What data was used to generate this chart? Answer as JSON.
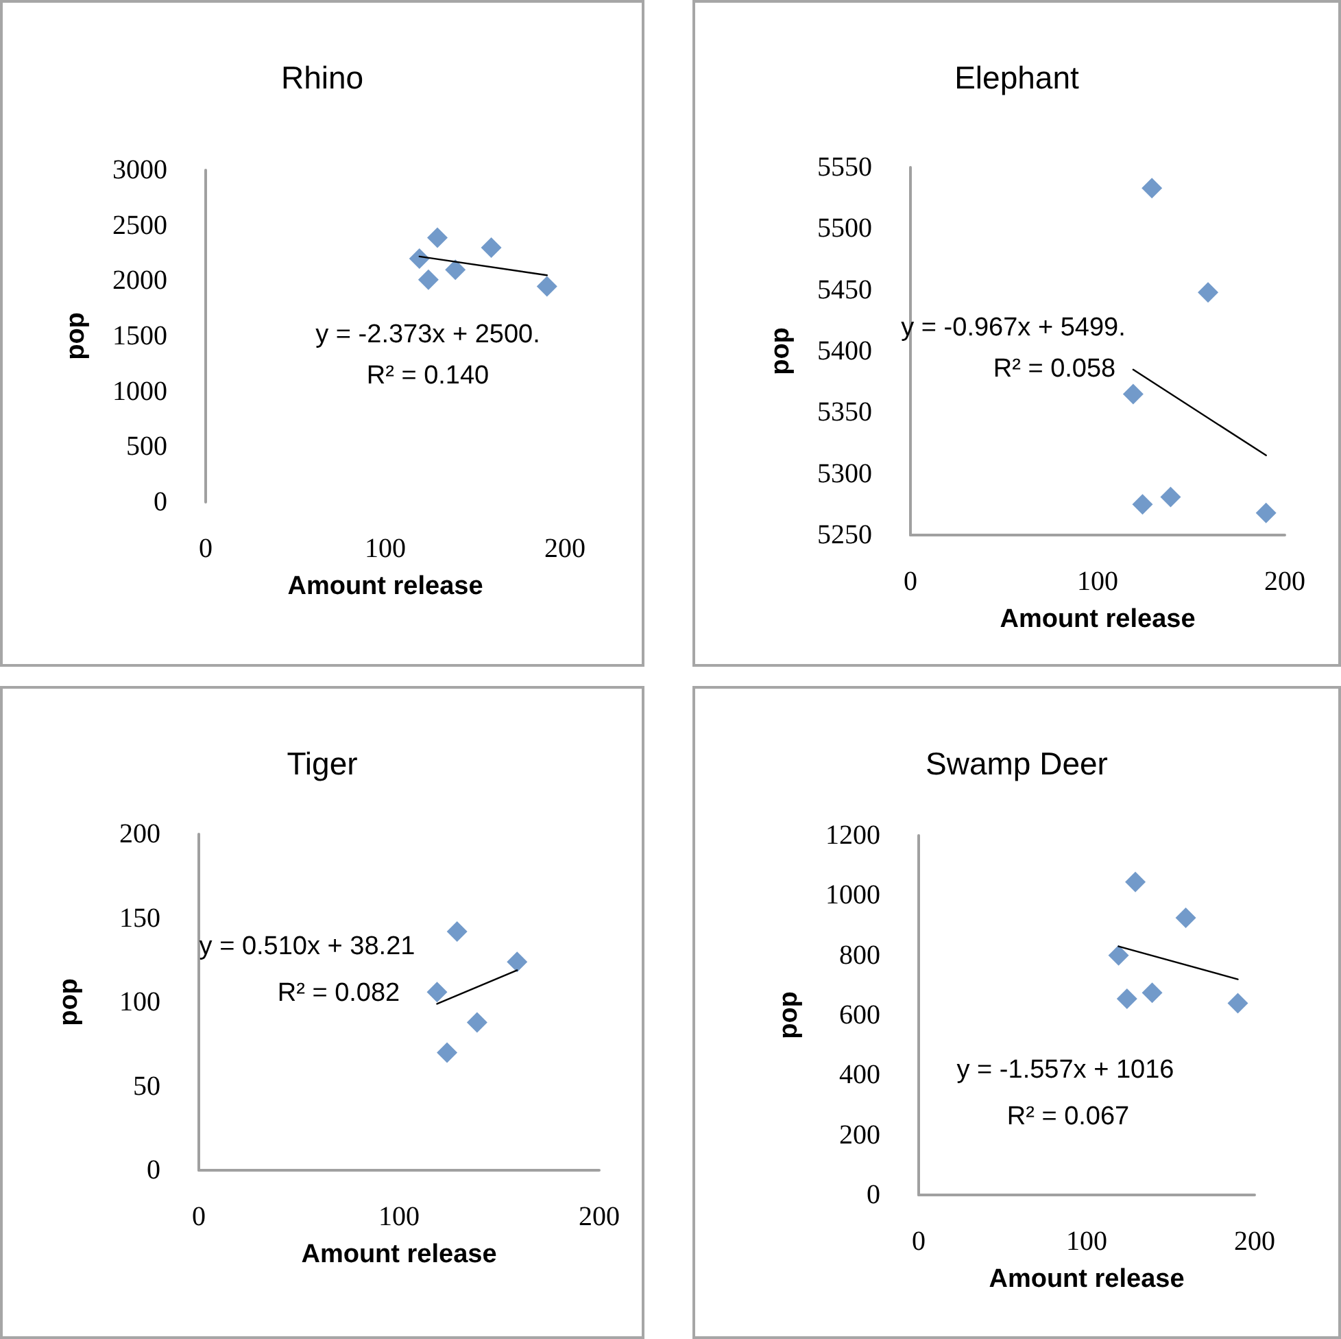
{
  "chart_data": [
    {
      "type": "scatter",
      "title": "Rhino",
      "xlabel": "Amount release",
      "ylabel": "pop",
      "xlim": [
        0,
        200
      ],
      "xticks": [
        0,
        100,
        200
      ],
      "ylim": [
        0,
        3000
      ],
      "yticks": [
        0,
        500,
        1000,
        1500,
        2000,
        2500,
        3000
      ],
      "grid": false,
      "marker": "diamond",
      "annotations": [
        "y = -2.373x + 2500.",
        "R² = 0.140"
      ],
      "series": [
        {
          "color": "#4f81bd",
          "x": [
            119,
            124,
            129,
            139,
            159,
            190
          ],
          "values": [
            2200,
            2010,
            2390,
            2100,
            2300,
            1950
          ]
        },
        {
          "type": "line",
          "color": "#000000",
          "marker": "none",
          "x": [
            119,
            190
          ],
          "values": [
            2220,
            2050
          ]
        }
      ]
    },
    {
      "type": "scatter",
      "title": "Elephant",
      "xlabel": "Amount release",
      "ylabel": "pop",
      "xlim": [
        0,
        200
      ],
      "xticks": [
        0,
        100,
        200
      ],
      "ylim": [
        5250,
        5550
      ],
      "yticks": [
        5250,
        5300,
        5350,
        5400,
        5450,
        5500,
        5550
      ],
      "grid": false,
      "marker": "diamond",
      "annotations": [
        "y = -0.967x + 5499.",
        "R² = 0.058"
      ],
      "series": [
        {
          "color": "#4f81bd",
          "x": [
            119,
            124,
            129,
            139,
            159,
            190
          ],
          "values": [
            5365,
            5275,
            5533,
            5281,
            5448,
            5268
          ]
        },
        {
          "type": "line",
          "color": "#000000",
          "marker": "none",
          "x": [
            119,
            190
          ],
          "values": [
            5385,
            5315
          ]
        }
      ]
    },
    {
      "type": "scatter",
      "title": "Tiger",
      "xlabel": "Amount release",
      "ylabel": "pop",
      "xlim": [
        0,
        200
      ],
      "xticks": [
        0,
        100,
        200
      ],
      "ylim": [
        0,
        200
      ],
      "yticks": [
        0,
        50,
        100,
        150,
        200
      ],
      "grid": false,
      "marker": "diamond",
      "annotations": [
        "y = 0.510x + 38.21",
        "R² = 0.082"
      ],
      "series": [
        {
          "color": "#4f81bd",
          "x": [
            119,
            124,
            129,
            139,
            159
          ],
          "values": [
            106,
            70,
            142,
            88,
            124
          ]
        },
        {
          "type": "line",
          "color": "#000000",
          "marker": "none",
          "x": [
            119,
            159
          ],
          "values": [
            99,
            119
          ]
        }
      ]
    },
    {
      "type": "scatter",
      "title": "Swamp Deer",
      "xlabel": "Amount release",
      "ylabel": "pop",
      "xlim": [
        0,
        200
      ],
      "xticks": [
        0,
        100,
        200
      ],
      "ylim": [
        0,
        1200
      ],
      "yticks": [
        0,
        200,
        400,
        600,
        800,
        1000,
        1200
      ],
      "grid": false,
      "marker": "diamond",
      "annotations": [
        "y = -1.557x + 1016",
        "R² = 0.067"
      ],
      "series": [
        {
          "color": "#4f81bd",
          "x": [
            119,
            124,
            129,
            139,
            159,
            190
          ],
          "values": [
            800,
            655,
            1045,
            675,
            925,
            640
          ]
        },
        {
          "type": "line",
          "color": "#000000",
          "marker": "none",
          "x": [
            119,
            190
          ],
          "values": [
            830,
            720
          ]
        }
      ]
    }
  ]
}
